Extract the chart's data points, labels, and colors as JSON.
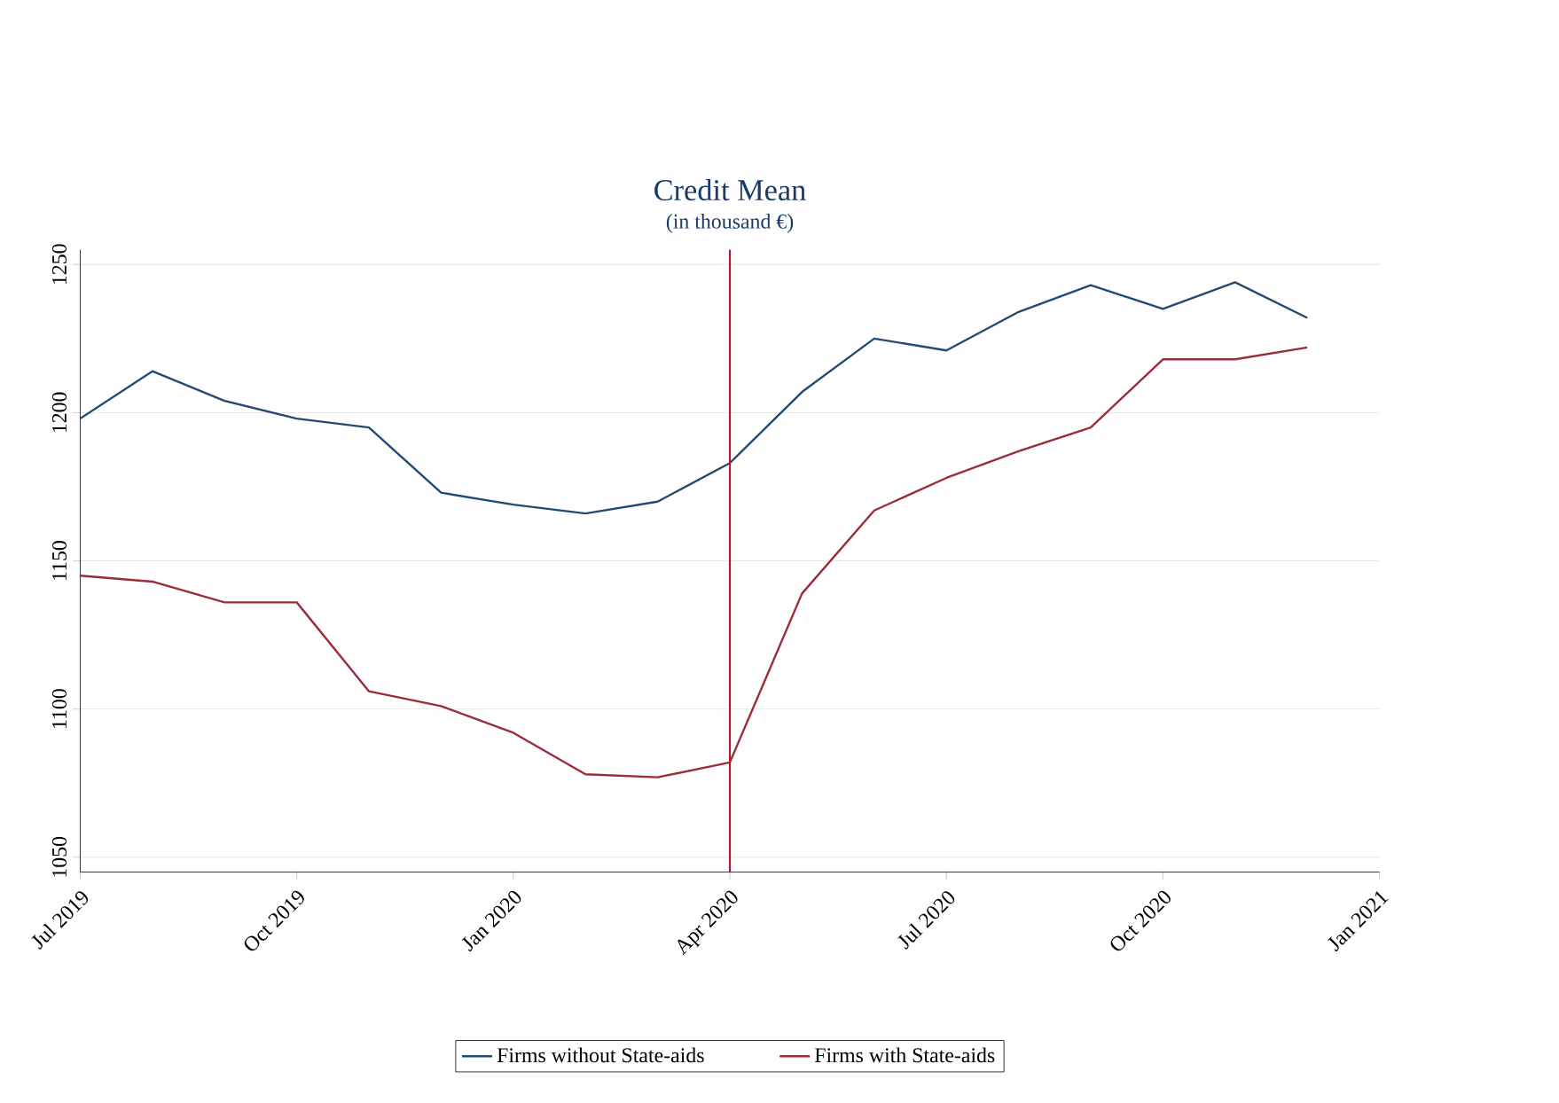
{
  "chart_data": {
    "type": "line",
    "title": "Credit Mean",
    "subtitle": "(in thousand €)",
    "x": [
      "2019-07",
      "2019-08",
      "2019-09",
      "2019-10",
      "2019-11",
      "2019-12",
      "2020-01",
      "2020-02",
      "2020-03",
      "2020-04",
      "2020-05",
      "2020-06",
      "2020-07",
      "2020-08",
      "2020-09",
      "2020-10",
      "2020-11",
      "2020-12"
    ],
    "series": [
      {
        "name": "Firms without State-aids",
        "color": "#234a72",
        "values": [
          1198,
          1214,
          1204,
          1198,
          1195,
          1173,
          1169,
          1166,
          1170,
          1183,
          1207,
          1225,
          1221,
          1234,
          1243,
          1235,
          1244,
          1232
        ]
      },
      {
        "name": "Firms with State-aids",
        "color": "#9b2c3a",
        "values": [
          1145,
          1143,
          1136,
          1136,
          1106,
          1101,
          1092,
          1078,
          1077,
          1082,
          1139,
          1167,
          1178,
          1187,
          1195,
          1218,
          1218,
          1222
        ]
      }
    ],
    "xlim": [
      "2019-07",
      "2021-01"
    ],
    "xticks": [
      {
        "value": "2019-07",
        "label": "Jul 2019"
      },
      {
        "value": "2019-10",
        "label": "Oct 2019"
      },
      {
        "value": "2020-01",
        "label": "Jan 2020"
      },
      {
        "value": "2020-04",
        "label": "Apr 2020"
      },
      {
        "value": "2020-07",
        "label": "Jul 2020"
      },
      {
        "value": "2020-10",
        "label": "Oct 2020"
      },
      {
        "value": "2021-01",
        "label": "Jan 2021"
      }
    ],
    "ylim": [
      1045,
      1255
    ],
    "yticks": [
      1050,
      1100,
      1150,
      1200,
      1250
    ],
    "ref_lines": [
      {
        "axis": "x",
        "value": "2020-04",
        "color": "#b0182e"
      }
    ],
    "grid": "y",
    "legend": "bottom",
    "marker": "none",
    "line_style": "solid"
  }
}
